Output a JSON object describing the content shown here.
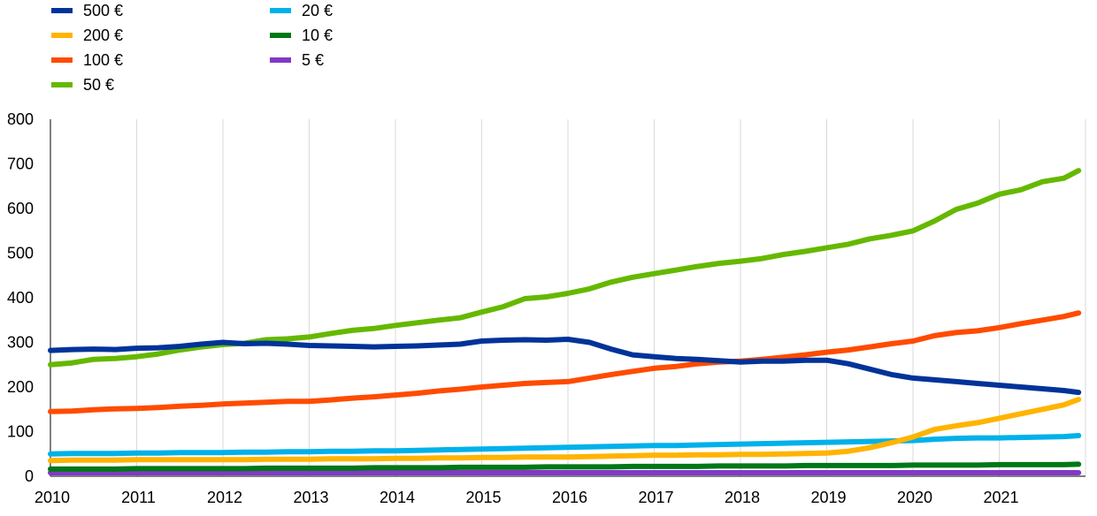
{
  "chart_data": {
    "type": "line",
    "title": "",
    "xlabel": "",
    "ylabel": "",
    "ylim": [
      0,
      800
    ],
    "xlim": [
      2010,
      2022
    ],
    "y_ticks": [
      "0",
      "100",
      "200",
      "300",
      "400",
      "500",
      "600",
      "700",
      "800"
    ],
    "x_ticks": [
      "2010",
      "2011",
      "2012",
      "2013",
      "2014",
      "2015",
      "2016",
      "2017",
      "2018",
      "2019",
      "2020",
      "2021"
    ],
    "grid": "vertical",
    "legend_position": "top-left",
    "x": [
      2010.0,
      2010.25,
      2010.5,
      2010.75,
      2011.0,
      2011.25,
      2011.5,
      2011.75,
      2012.0,
      2012.25,
      2012.5,
      2012.75,
      2013.0,
      2013.25,
      2013.5,
      2013.75,
      2014.0,
      2014.25,
      2014.5,
      2014.75,
      2015.0,
      2015.25,
      2015.5,
      2015.75,
      2016.0,
      2016.25,
      2016.5,
      2016.75,
      2017.0,
      2017.25,
      2017.5,
      2017.75,
      2018.0,
      2018.25,
      2018.5,
      2018.75,
      2019.0,
      2019.25,
      2019.5,
      2019.75,
      2020.0,
      2020.25,
      2020.5,
      2020.75,
      2021.0,
      2021.25,
      2021.5,
      2021.75,
      2021.92
    ],
    "series": [
      {
        "name": "500 €",
        "color": "#003399",
        "values": [
          282,
          284,
          285,
          284,
          287,
          288,
          291,
          296,
          300,
          297,
          298,
          296,
          293,
          292,
          291,
          290,
          291,
          292,
          294,
          296,
          303,
          305,
          306,
          305,
          307,
          300,
          285,
          272,
          268,
          264,
          262,
          259,
          256,
          258,
          258,
          260,
          260,
          252,
          240,
          228,
          220,
          216,
          212,
          208,
          204,
          200,
          196,
          192,
          188
        ]
      },
      {
        "name": "200 €",
        "color": "#FFB400",
        "values": [
          35,
          36,
          36,
          36,
          37,
          37,
          37,
          37,
          37,
          37,
          38,
          38,
          38,
          39,
          39,
          39,
          40,
          40,
          41,
          41,
          42,
          42,
          43,
          43,
          43,
          44,
          45,
          46,
          47,
          47,
          48,
          48,
          49,
          49,
          50,
          51,
          52,
          56,
          64,
          75,
          88,
          105,
          113,
          120,
          130,
          140,
          150,
          160,
          172
        ]
      },
      {
        "name": "100 €",
        "color": "#FF4B00",
        "values": [
          145,
          146,
          149,
          151,
          152,
          154,
          157,
          159,
          162,
          164,
          166,
          168,
          168,
          171,
          175,
          178,
          182,
          186,
          191,
          195,
          200,
          204,
          208,
          210,
          212,
          220,
          228,
          235,
          242,
          246,
          252,
          256,
          258,
          262,
          267,
          272,
          278,
          283,
          290,
          297,
          303,
          315,
          322,
          326,
          333,
          342,
          350,
          358,
          366
        ]
      },
      {
        "name": "50 €",
        "color": "#65B800",
        "values": [
          250,
          254,
          262,
          264,
          268,
          274,
          283,
          290,
          295,
          298,
          306,
          308,
          312,
          320,
          327,
          331,
          338,
          344,
          350,
          355,
          368,
          380,
          398,
          402,
          410,
          420,
          435,
          446,
          454,
          462,
          470,
          477,
          482,
          488,
          497,
          504,
          512,
          520,
          532,
          540,
          550,
          572,
          598,
          612,
          632,
          642,
          660,
          668,
          685
        ]
      },
      {
        "name": "20 €",
        "color": "#00B1EA",
        "values": [
          50,
          51,
          51,
          51,
          52,
          52,
          53,
          53,
          53,
          54,
          54,
          55,
          55,
          56,
          56,
          57,
          57,
          58,
          59,
          60,
          61,
          62,
          63,
          64,
          65,
          66,
          67,
          68,
          69,
          69,
          70,
          71,
          72,
          73,
          74,
          75,
          76,
          77,
          78,
          79,
          80,
          83,
          85,
          86,
          86,
          87,
          88,
          89,
          91
        ]
      },
      {
        "name": "10 €",
        "color": "#007816",
        "values": [
          16,
          16,
          16,
          16,
          17,
          17,
          17,
          17,
          17,
          17,
          18,
          18,
          18,
          18,
          18,
          19,
          19,
          19,
          19,
          20,
          20,
          20,
          20,
          21,
          21,
          21,
          21,
          22,
          22,
          22,
          22,
          23,
          23,
          23,
          23,
          24,
          24,
          24,
          24,
          24,
          25,
          25,
          25,
          25,
          26,
          26,
          26,
          26,
          27
        ]
      },
      {
        "name": "5 €",
        "color": "#8139C6",
        "values": [
          8,
          8,
          8,
          8,
          8,
          8,
          8,
          8,
          8,
          8,
          8,
          8,
          8,
          8,
          8,
          8,
          8,
          8,
          8,
          8,
          8,
          8,
          8,
          8,
          8,
          8,
          8,
          8,
          8,
          8,
          8,
          8,
          8,
          8,
          8,
          8,
          8,
          8,
          8,
          8,
          8,
          8,
          8,
          8,
          8,
          8,
          8,
          8,
          8
        ]
      }
    ]
  }
}
